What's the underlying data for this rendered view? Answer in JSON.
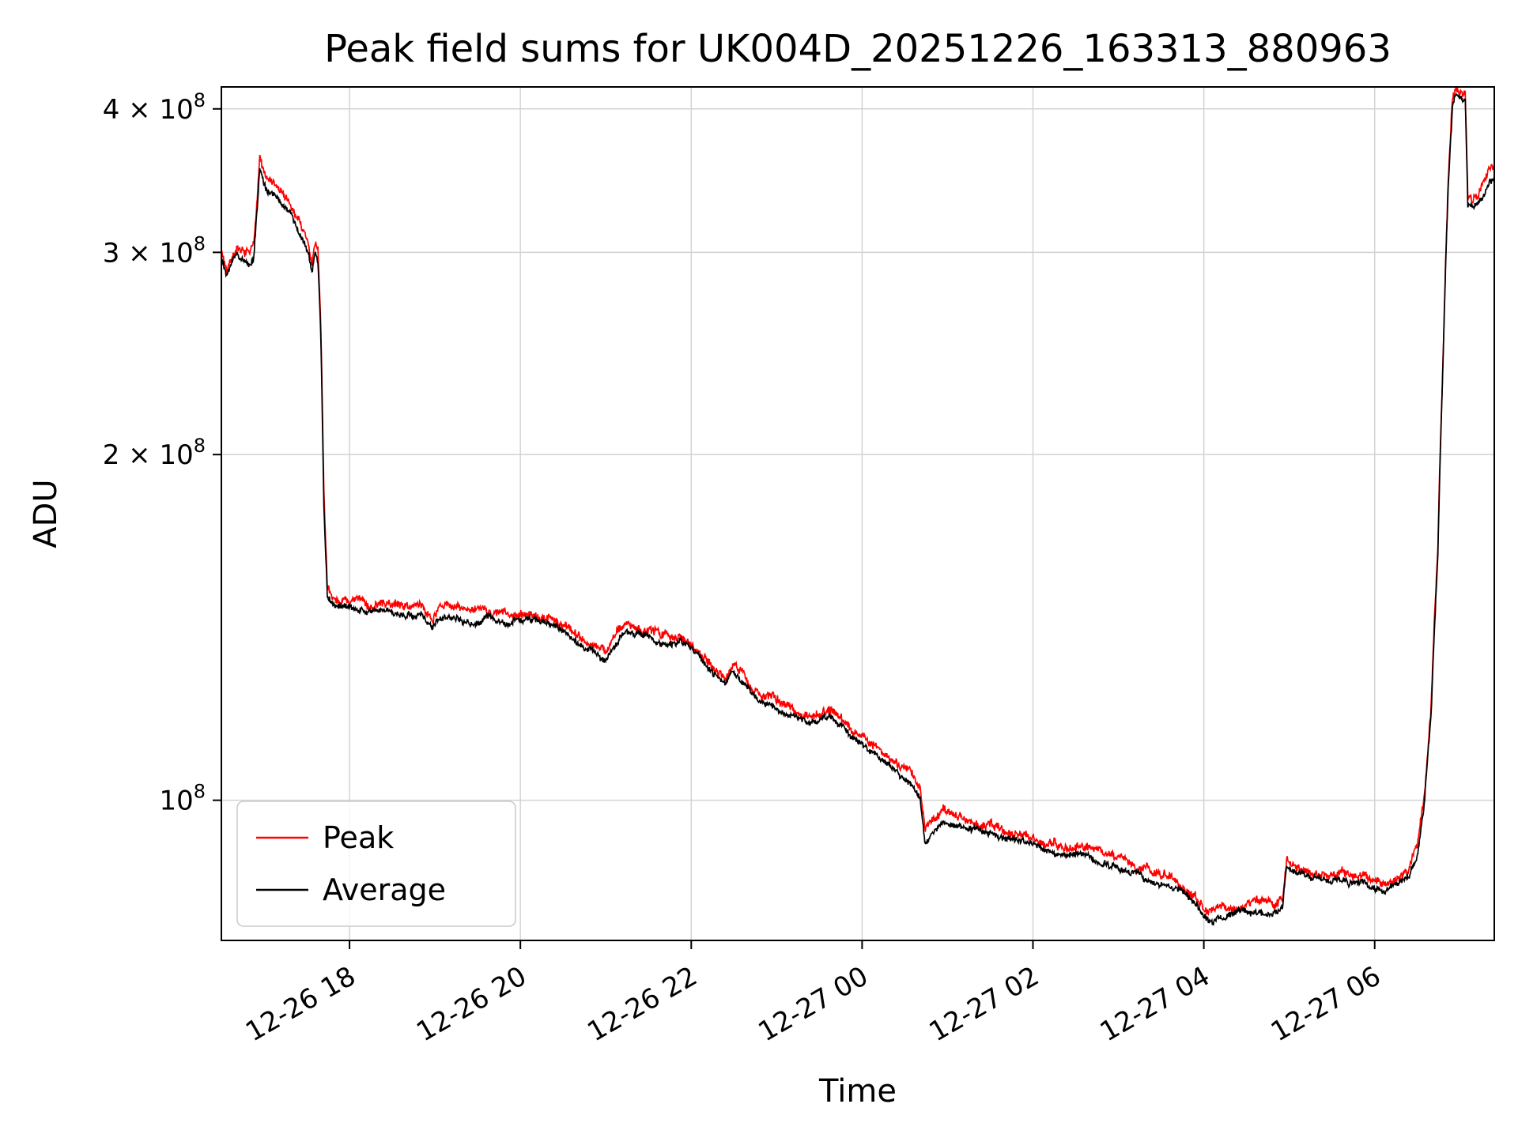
{
  "chart_data": {
    "type": "line",
    "title": "Peak field sums for UK004D_20251226_163313_880963",
    "xlabel": "Time",
    "ylabel": "ADU",
    "yscale": "log",
    "grid": true,
    "x_unit": "hours since 2025-12-26 00:00 (read from tick labels)",
    "xlim_hours": [
      16.5,
      31.4
    ],
    "ylim": [
      75500000.0,
      418000000.0
    ],
    "xticks": [
      {
        "hour": 18,
        "label": "12-26 18"
      },
      {
        "hour": 20,
        "label": "12-26 20"
      },
      {
        "hour": 22,
        "label": "12-26 22"
      },
      {
        "hour": 24,
        "label": "12-27 00"
      },
      {
        "hour": 26,
        "label": "12-27 02"
      },
      {
        "hour": 28,
        "label": "12-27 04"
      },
      {
        "hour": 30,
        "label": "12-27 06"
      }
    ],
    "yticks": [
      {
        "value": 100000000.0,
        "base": "10",
        "exp": "8"
      },
      {
        "value": 200000000.0,
        "base": "2 × 10",
        "exp": "8"
      },
      {
        "value": 300000000.0,
        "base": "3 × 10",
        "exp": "8"
      },
      {
        "value": 400000000.0,
        "base": "4 × 10",
        "exp": "8"
      }
    ],
    "legend": {
      "position": "lower left",
      "entries": [
        {
          "label": "Peak",
          "color": "#ff0000"
        },
        {
          "label": "Average",
          "color": "#000000"
        }
      ]
    },
    "series": [
      {
        "name": "Peak",
        "color": "#ff0000",
        "ratio_to_average": 1.018,
        "noise": 0.007
      },
      {
        "name": "Average",
        "color": "#000000",
        "noise": 0.005
      }
    ],
    "average_keypoints_hours_adu": [
      [
        16.5,
        296000000.0
      ],
      [
        16.56,
        285000000.0
      ],
      [
        16.62,
        293000000.0
      ],
      [
        16.68,
        299000000.0
      ],
      [
        16.75,
        294000000.0
      ],
      [
        16.82,
        292000000.0
      ],
      [
        16.88,
        298000000.0
      ],
      [
        16.92,
        330000000.0
      ],
      [
        16.95,
        358000000.0
      ],
      [
        16.98,
        348000000.0
      ],
      [
        17.02,
        342000000.0
      ],
      [
        17.08,
        338000000.0
      ],
      [
        17.14,
        335000000.0
      ],
      [
        17.2,
        330000000.0
      ],
      [
        17.26,
        327000000.0
      ],
      [
        17.32,
        322000000.0
      ],
      [
        17.38,
        316000000.0
      ],
      [
        17.44,
        310000000.0
      ],
      [
        17.48,
        304000000.0
      ],
      [
        17.52,
        298000000.0
      ],
      [
        17.56,
        287000000.0
      ],
      [
        17.6,
        299000000.0
      ],
      [
        17.63,
        295000000.0
      ],
      [
        17.66,
        260000000.0
      ],
      [
        17.7,
        180000000.0
      ],
      [
        17.74,
        150000000.0
      ],
      [
        17.8,
        148000000.0
      ],
      [
        17.9,
        147000000.0
      ],
      [
        18.05,
        146500000.0
      ],
      [
        18.25,
        145500000.0
      ],
      [
        18.45,
        146000000.0
      ],
      [
        18.65,
        145000000.0
      ],
      [
        18.85,
        145500000.0
      ],
      [
        18.97,
        142000000.0
      ],
      [
        19.05,
        145000000.0
      ],
      [
        19.25,
        144000000.0
      ],
      [
        19.45,
        143000000.0
      ],
      [
        19.65,
        144000000.0
      ],
      [
        19.85,
        142000000.0
      ],
      [
        20.0,
        144000000.0
      ],
      [
        20.15,
        143000000.0
      ],
      [
        20.3,
        142000000.0
      ],
      [
        20.45,
        141000000.0
      ],
      [
        20.6,
        139000000.0
      ],
      [
        20.75,
        136000000.0
      ],
      [
        20.9,
        134000000.0
      ],
      [
        21.0,
        133000000.0
      ],
      [
        21.1,
        136000000.0
      ],
      [
        21.2,
        139000000.0
      ],
      [
        21.32,
        140000000.0
      ],
      [
        21.45,
        139000000.0
      ],
      [
        21.6,
        138000000.0
      ],
      [
        21.75,
        136000000.0
      ],
      [
        21.88,
        137000000.0
      ],
      [
        22.0,
        135000000.0
      ],
      [
        22.1,
        133000000.0
      ],
      [
        22.2,
        130000000.0
      ],
      [
        22.3,
        128000000.0
      ],
      [
        22.4,
        126000000.0
      ],
      [
        22.48,
        129000000.0
      ],
      [
        22.58,
        127000000.0
      ],
      [
        22.68,
        124000000.0
      ],
      [
        22.8,
        122000000.0
      ],
      [
        22.95,
        120500000.0
      ],
      [
        23.1,
        119000000.0
      ],
      [
        23.25,
        117500000.0
      ],
      [
        23.4,
        116500000.0
      ],
      [
        23.52,
        117500000.0
      ],
      [
        23.65,
        118500000.0
      ],
      [
        23.78,
        116000000.0
      ],
      [
        23.9,
        113500000.0
      ],
      [
        24.02,
        112000000.0
      ],
      [
        24.15,
        110000000.0
      ],
      [
        24.35,
        107000000.0
      ],
      [
        24.55,
        104000000.0
      ],
      [
        24.68,
        100000000.0
      ],
      [
        24.74,
        92000000.0
      ],
      [
        24.82,
        94000000.0
      ],
      [
        24.95,
        96000000.0
      ],
      [
        25.08,
        95500000.0
      ],
      [
        25.2,
        95000000.0
      ],
      [
        25.35,
        94000000.0
      ],
      [
        25.55,
        93000000.0
      ],
      [
        25.75,
        92500000.0
      ],
      [
        25.95,
        91500000.0
      ],
      [
        26.15,
        90500000.0
      ],
      [
        26.35,
        90000000.0
      ],
      [
        26.55,
        89500000.0
      ],
      [
        26.75,
        88500000.0
      ],
      [
        26.95,
        87500000.0
      ],
      [
        27.15,
        86500000.0
      ],
      [
        27.35,
        85500000.0
      ],
      [
        27.55,
        84500000.0
      ],
      [
        27.75,
        83000000.0
      ],
      [
        27.9,
        81000000.0
      ],
      [
        28.0,
        79500000.0
      ],
      [
        28.1,
        78500000.0
      ],
      [
        28.22,
        79000000.0
      ],
      [
        28.35,
        79500000.0
      ],
      [
        28.5,
        80000000.0
      ],
      [
        28.65,
        80000000.0
      ],
      [
        28.8,
        79800000.0
      ],
      [
        28.92,
        80500000.0
      ],
      [
        28.97,
        87500000.0
      ],
      [
        29.05,
        86500000.0
      ],
      [
        29.18,
        85700000.0
      ],
      [
        29.32,
        85200000.0
      ],
      [
        29.46,
        85000000.0
      ],
      [
        29.6,
        84800000.0
      ],
      [
        29.74,
        84500000.0
      ],
      [
        29.88,
        85000000.0
      ],
      [
        30.0,
        84200000.0
      ],
      [
        30.1,
        83600000.0
      ],
      [
        30.2,
        84000000.0
      ],
      [
        30.3,
        84600000.0
      ],
      [
        30.4,
        86000000.0
      ],
      [
        30.5,
        90000000.0
      ],
      [
        30.58,
        99000000.0
      ],
      [
        30.66,
        118000000.0
      ],
      [
        30.74,
        165000000.0
      ],
      [
        30.8,
        240000000.0
      ],
      [
        30.86,
        340000000.0
      ],
      [
        30.91,
        400000000.0
      ],
      [
        30.94,
        408000000.0
      ],
      [
        31.06,
        408000000.0
      ],
      [
        31.09,
        330000000.0
      ],
      [
        31.15,
        327000000.0
      ],
      [
        31.21,
        331000000.0
      ],
      [
        31.27,
        337000000.0
      ],
      [
        31.33,
        345000000.0
      ],
      [
        31.4,
        350000000.0
      ]
    ],
    "style": {
      "grid_color": "#d3d3d3",
      "spine_color": "#000000",
      "background": "#ffffff"
    },
    "noise_seed": 7
  }
}
